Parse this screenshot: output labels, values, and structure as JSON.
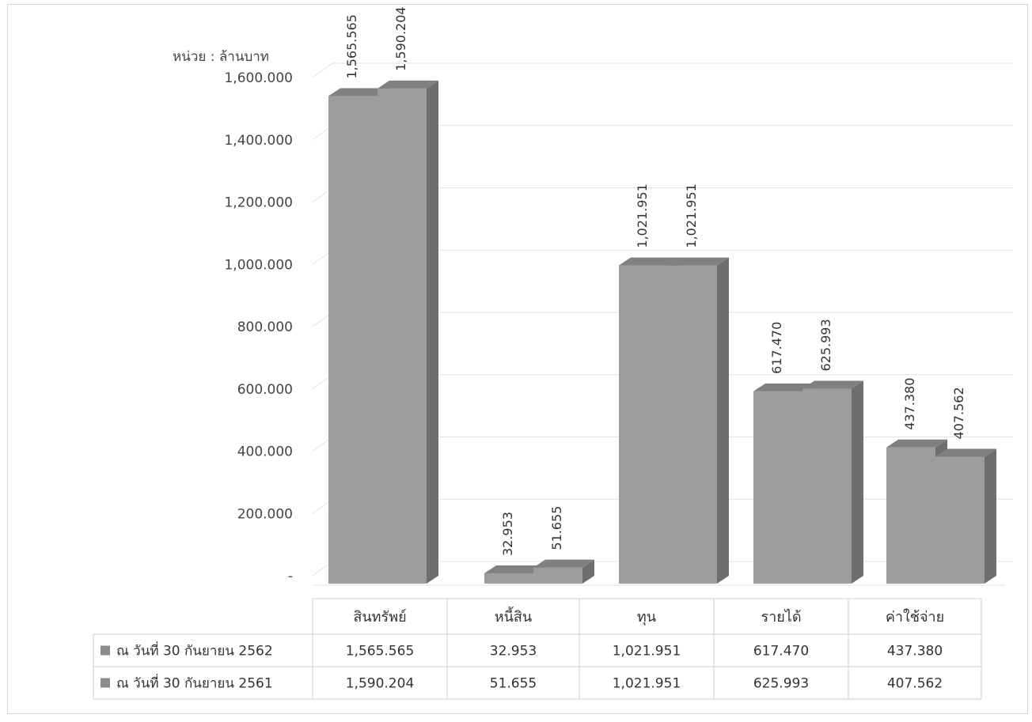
{
  "unit_label": "หน่วย : ล้านบาท",
  "chart_data": {
    "type": "bar",
    "categories": [
      "สินทรัพย์",
      "หนี้สิน",
      "ทุน",
      "รายได้",
      "ค่าใช้จ่าย"
    ],
    "series": [
      {
        "name": "ณ วันที่ 30 กันยายน 2562",
        "values": [
          1565.565,
          32.953,
          1021.951,
          617.47,
          437.38
        ],
        "labels": [
          "1,565.565",
          "32.953",
          "1,021.951",
          "617.470",
          "437.380"
        ]
      },
      {
        "name": "ณ วันที่ 30 กันยายน 2561",
        "values": [
          1590.204,
          51.655,
          1021.951,
          625.993,
          407.562
        ],
        "labels": [
          "1,590.204",
          "51.655",
          "1,021.951",
          "625.993",
          "407.562"
        ]
      }
    ],
    "y_ticks": [
      {
        "value": 0,
        "label": "-"
      },
      {
        "value": 200,
        "label": "200.000"
      },
      {
        "value": 400,
        "label": "400.000"
      },
      {
        "value": 600,
        "label": "600.000"
      },
      {
        "value": 800,
        "label": "800.000"
      },
      {
        "value": 1000,
        "label": "1,000.000"
      },
      {
        "value": 1200,
        "label": "1,200.000"
      },
      {
        "value": 1400,
        "label": "1,400.000"
      },
      {
        "value": 1600,
        "label": "1,600.000"
      }
    ],
    "ylim": [
      0,
      1600
    ],
    "grid": true,
    "style": "3d-column",
    "colors": {
      "bar_front": "#9c9c9c",
      "bar_top": "#808080",
      "bar_side": "#6e6e6e",
      "legend_marker": "#8c8c8c"
    }
  }
}
